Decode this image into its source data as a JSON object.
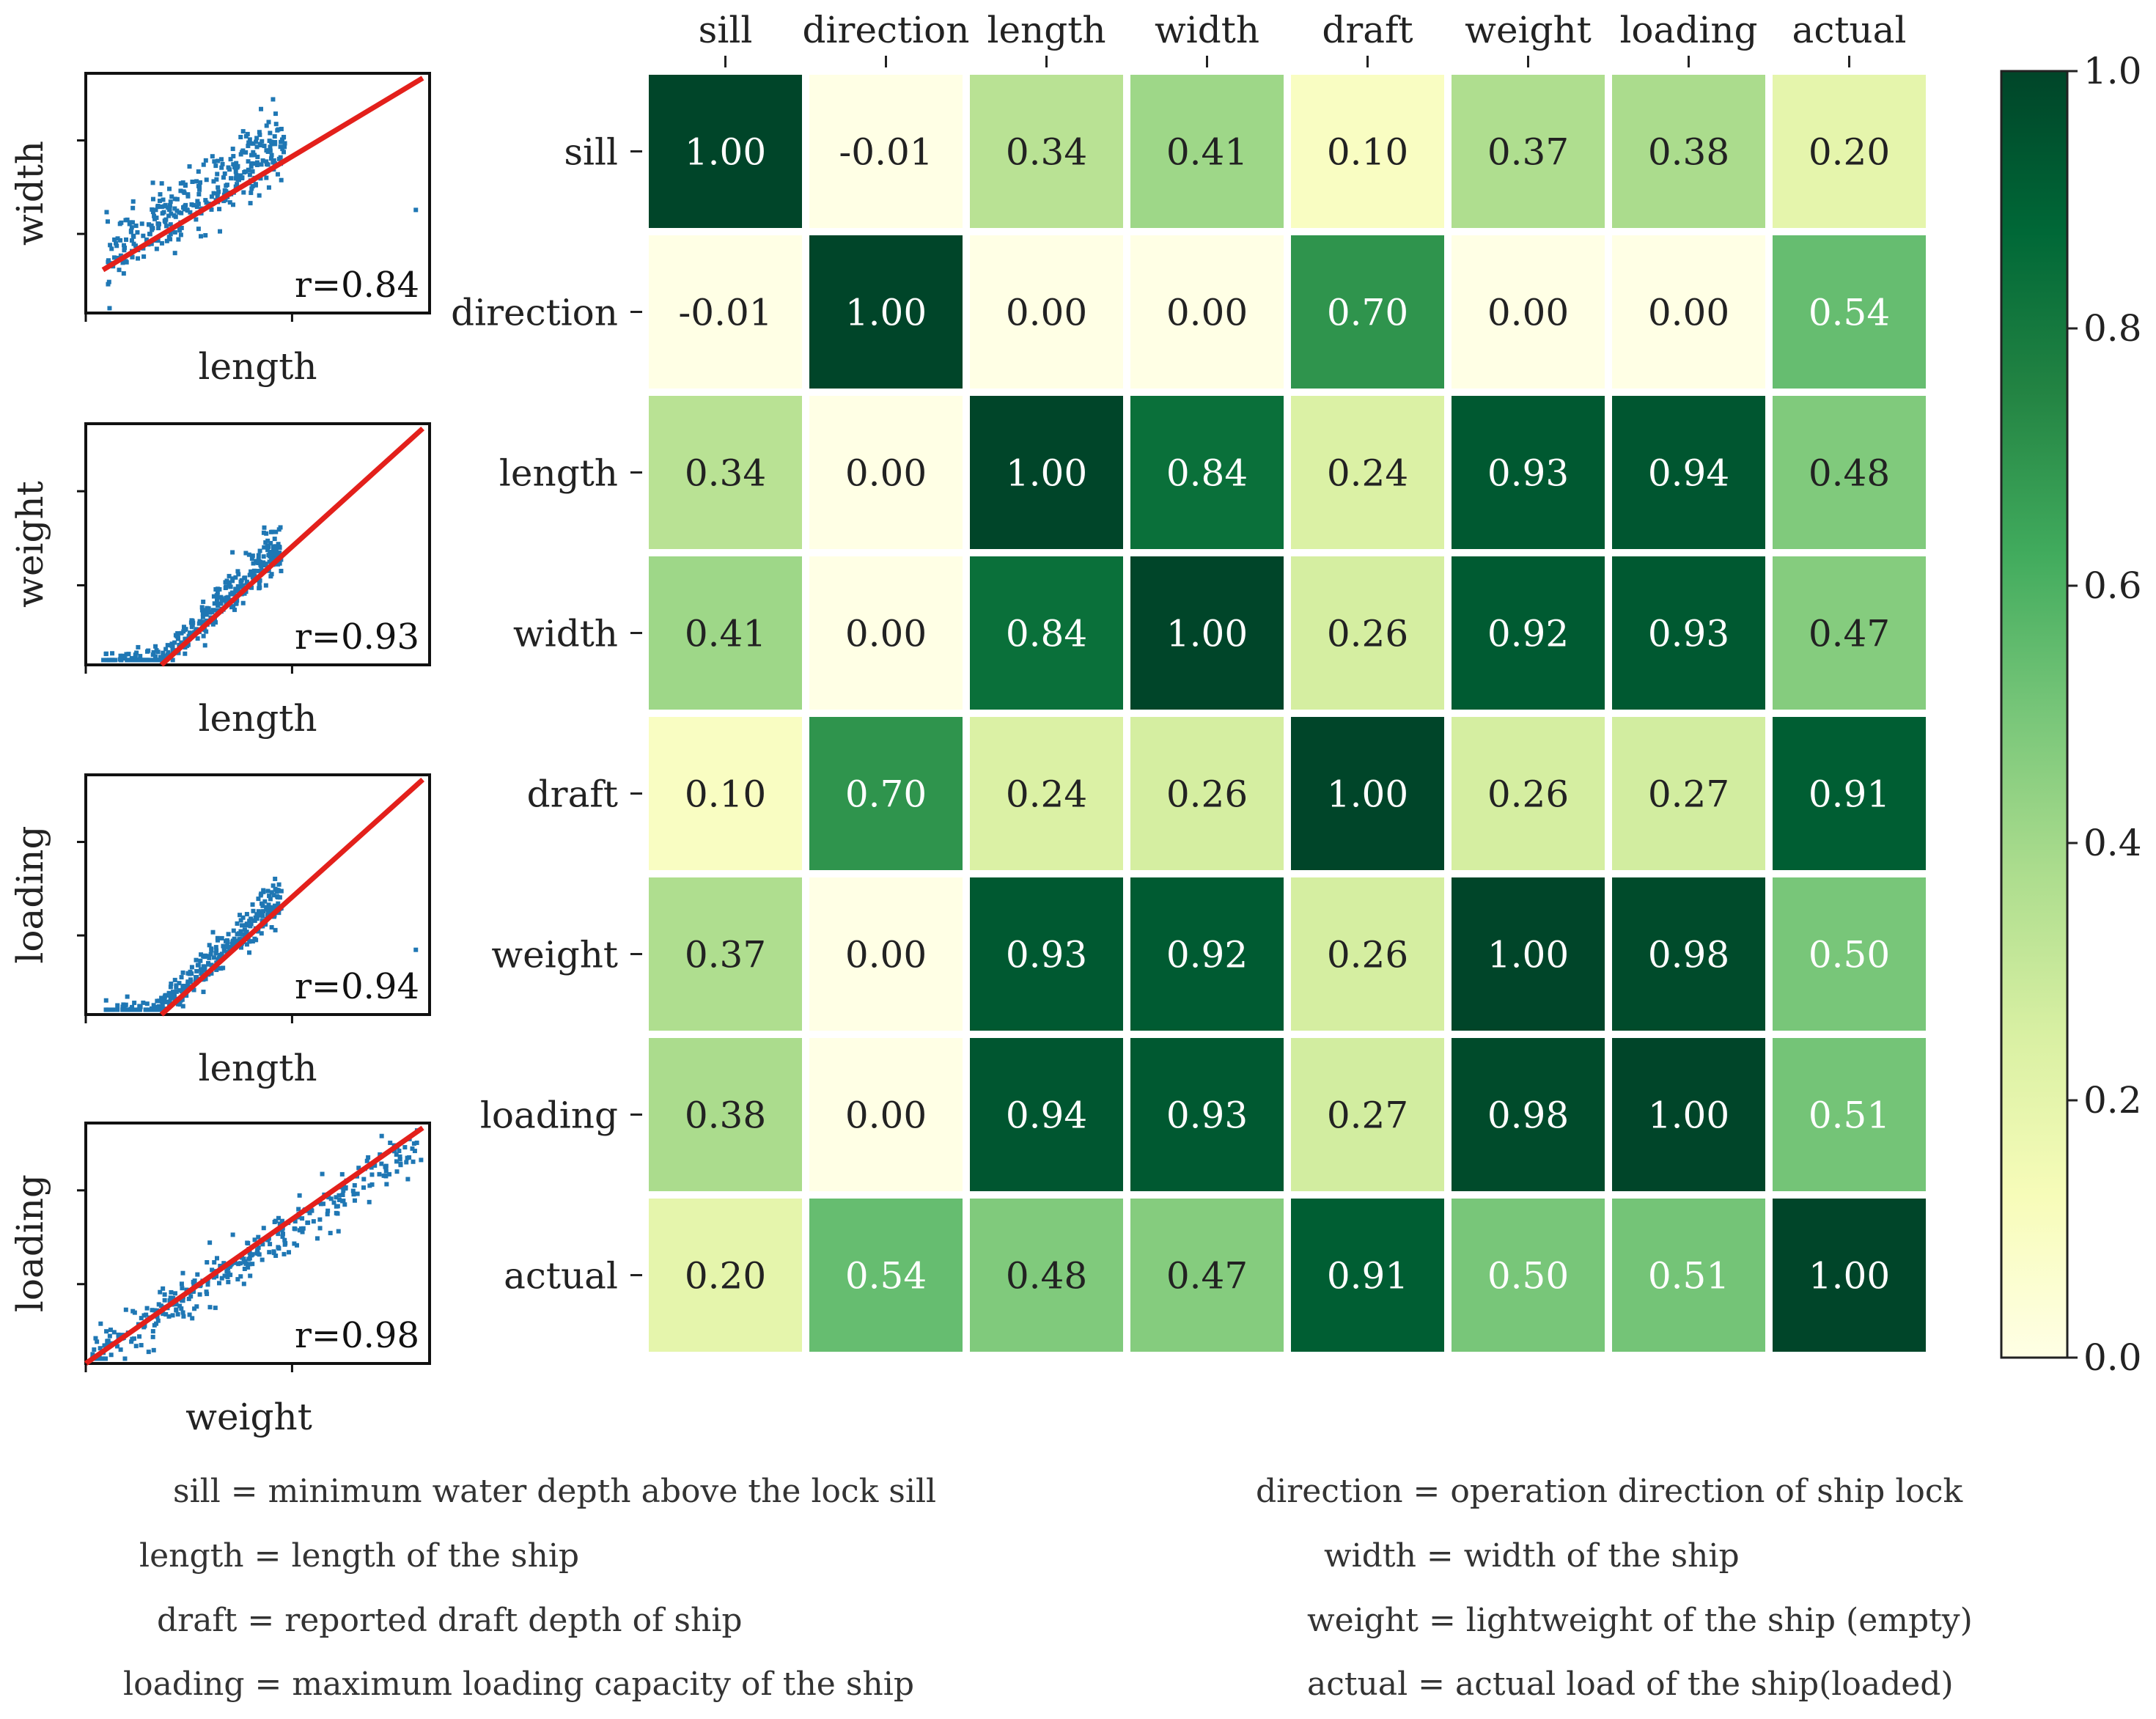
{
  "chart_data": [
    {
      "type": "heatmap",
      "title": "",
      "x_labels": [
        "sill",
        "direction",
        "length",
        "width",
        "draft",
        "weight",
        "loading",
        "actual"
      ],
      "y_labels": [
        "sill",
        "direction",
        "length",
        "width",
        "draft",
        "weight",
        "loading",
        "actual"
      ],
      "values": [
        [
          1.0,
          -0.01,
          0.34,
          0.41,
          0.1,
          0.37,
          0.38,
          0.2
        ],
        [
          -0.01,
          1.0,
          0.0,
          0.0,
          0.7,
          0.0,
          0.0,
          0.54
        ],
        [
          0.34,
          0.0,
          1.0,
          0.84,
          0.24,
          0.93,
          0.94,
          0.48
        ],
        [
          0.41,
          0.0,
          0.84,
          1.0,
          0.26,
          0.92,
          0.93,
          0.47
        ],
        [
          0.1,
          0.7,
          0.24,
          0.26,
          1.0,
          0.26,
          0.27,
          0.91
        ],
        [
          0.37,
          0.0,
          0.93,
          0.92,
          0.26,
          1.0,
          0.98,
          0.5
        ],
        [
          0.38,
          0.0,
          0.94,
          0.93,
          0.27,
          0.98,
          1.0,
          0.51
        ],
        [
          0.2,
          0.54,
          0.48,
          0.47,
          0.91,
          0.5,
          0.51,
          1.0
        ]
      ],
      "value_format": "2 decimals",
      "colormap": "YlGn",
      "colorbar": {
        "range": [
          0.0,
          1.0
        ],
        "ticks": [
          0.0,
          0.2,
          0.4,
          0.6,
          0.8,
          1.0
        ],
        "tick_labels": [
          "0.0",
          "0.2",
          "0.4",
          "0.6",
          "0.8",
          "1.0"
        ],
        "colors": [
          "#ffffe5",
          "#f7fcb9",
          "#d9f0a3",
          "#addd8e",
          "#78c679",
          "#41ab5d",
          "#238443",
          "#006837",
          "#004529"
        ]
      }
    },
    {
      "type": "scatter",
      "xlabel": "length",
      "ylabel": "width",
      "annotation": "r=0.84",
      "regression_line": true,
      "scatter_color": "#1f77b4",
      "line_color": "#e3201b"
    },
    {
      "type": "scatter",
      "xlabel": "length",
      "ylabel": "weight",
      "annotation": "r=0.93",
      "regression_line": true,
      "scatter_color": "#1f77b4",
      "line_color": "#e3201b"
    },
    {
      "type": "scatter",
      "xlabel": "length",
      "ylabel": "loading",
      "annotation": "r=0.94",
      "regression_line": true,
      "scatter_color": "#1f77b4",
      "line_color": "#e3201b"
    },
    {
      "type": "scatter",
      "xlabel": "weight",
      "ylabel": "loading",
      "annotation": "r=0.98",
      "regression_line": true,
      "scatter_color": "#1f77b4",
      "line_color": "#e3201b"
    }
  ],
  "legend": [
    "sill = minimum water depth above the lock sill",
    "direction = operation direction of ship lock",
    "length = length of the ship",
    "width = width of the ship",
    "draft = reported draft depth of ship",
    "weight = lightweight of the ship (empty)",
    "loading = maximum loading capacity of the ship",
    "actual = actual load of the ship(loaded)"
  ]
}
